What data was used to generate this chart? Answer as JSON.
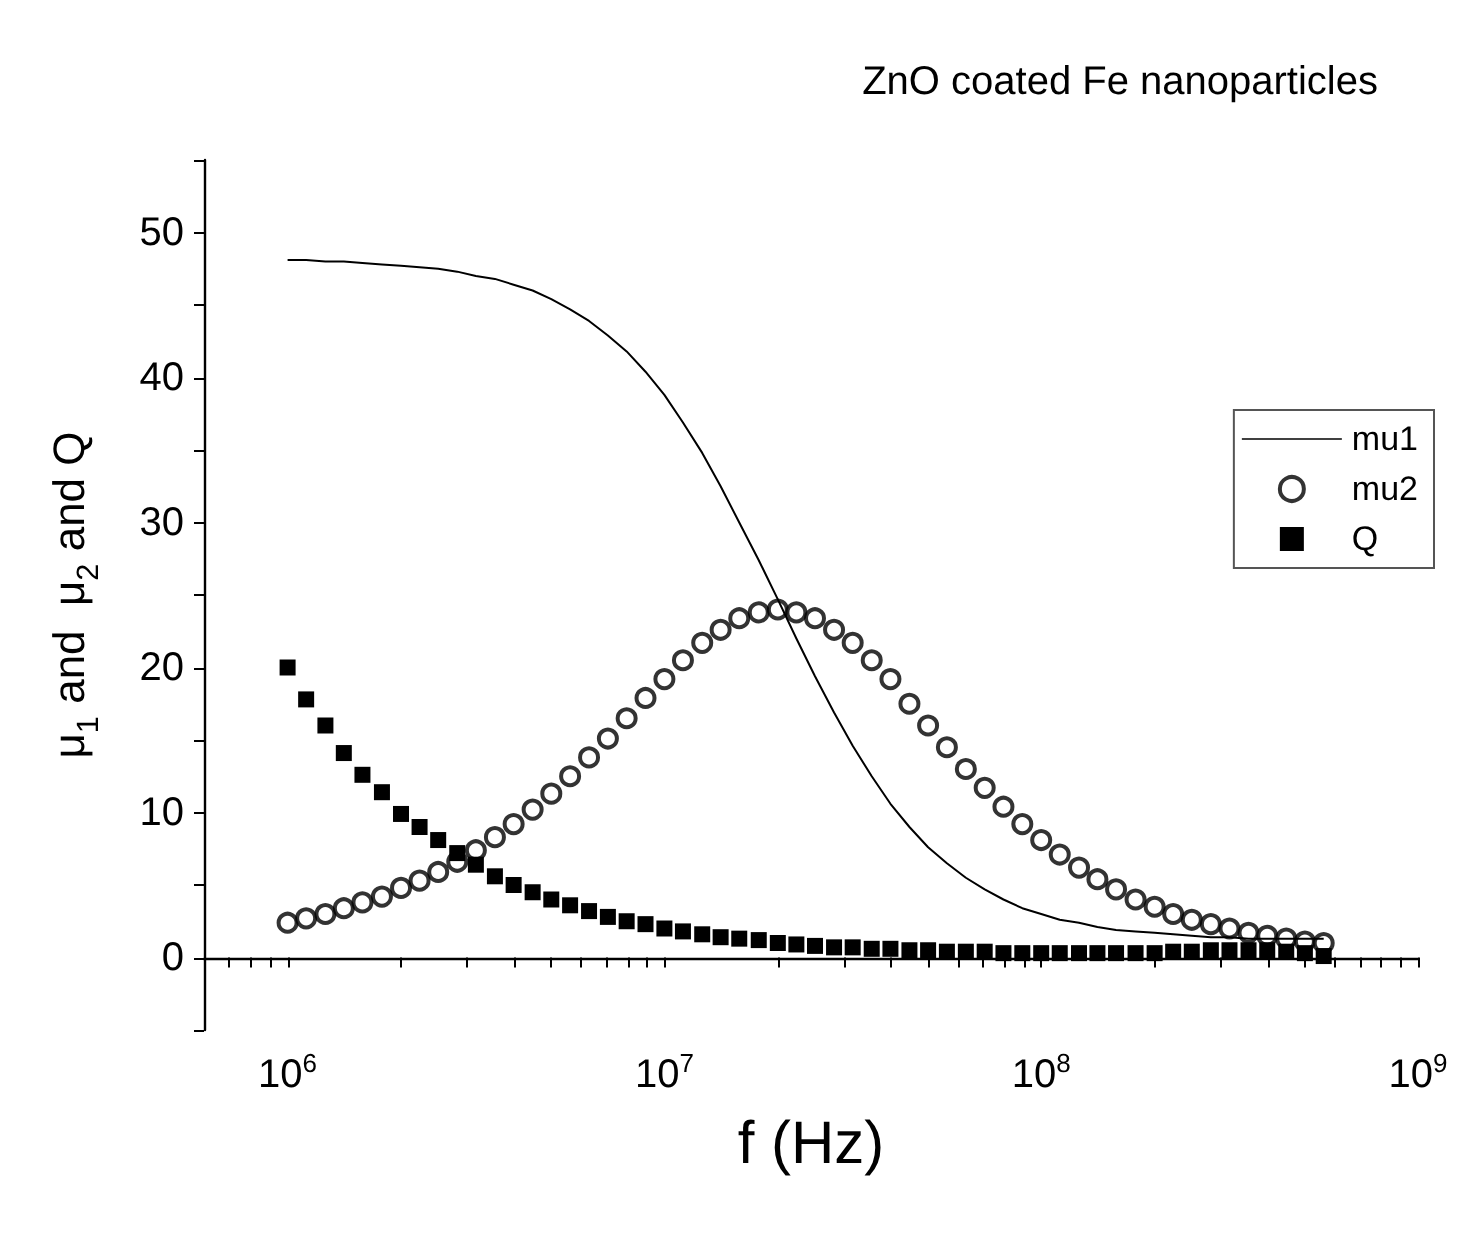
{
  "chart_data": {
    "type": "line",
    "title": "ZnO coated Fe nanoparticles",
    "xlabel": "f (Hz)",
    "ylabel": "μ$_{1}$ and  μ$_{2}$ and Q",
    "log": "x",
    "legend": "right",
    "grid": false,
    "x": [
      1000000.0,
      1120000.0,
      1260000.0,
      1410000.0,
      1580000.0,
      1780000.0,
      2000000.0,
      2240000.0,
      2510000.0,
      2820000.0,
      3160000.0,
      3550000.0,
      3980000.0,
      4470000.0,
      5010000.0,
      5620000.0,
      6310000.0,
      7080000.0,
      7940000.0,
      8910000.0,
      10000000.0,
      11200000.0,
      12600000.0,
      14100000.0,
      15800000.0,
      17800000.0,
      20000000.0,
      22400000.0,
      25100000.0,
      28200000.0,
      31600000.0,
      35500000.0,
      39800000.0,
      44700000.0,
      50100000.0,
      56200000.0,
      63100000.0,
      70800000.0,
      79400000.0,
      89100000.0,
      100000000.0,
      112000000.0,
      126000000.0,
      141000000.0,
      158000000.0,
      178000000.0,
      200000000.0,
      224000000.0,
      251000000.0,
      282000000.0,
      316000000.0,
      355000000.0,
      398000000.0,
      447000000.0,
      501000000.0,
      562000000.0
    ],
    "series": [
      {
        "name": "mu1",
        "type": "line",
        "marker": "none",
        "line_style": "solid",
        "color": "#000000",
        "values": [
          48.1,
          48.1,
          48.0,
          48.0,
          47.9,
          47.8,
          47.7,
          47.6,
          47.5,
          47.3,
          47.0,
          46.8,
          46.4,
          46.0,
          45.4,
          44.7,
          43.9,
          42.9,
          41.8,
          40.4,
          38.8,
          36.9,
          34.8,
          32.5,
          30.0,
          27.4,
          24.7,
          22.0,
          19.4,
          16.9,
          14.6,
          12.5,
          10.6,
          9.0,
          7.6,
          6.5,
          5.5,
          4.7,
          4.0,
          3.4,
          3.0,
          2.6,
          2.4,
          2.1,
          1.9,
          1.8,
          1.7,
          1.6,
          1.5,
          1.4,
          1.4,
          1.3,
          1.3,
          1.3,
          1.3,
          1.3
        ]
      },
      {
        "name": "mu2",
        "type": "scatter",
        "marker": "circle",
        "color": "#000000",
        "values": [
          2.4,
          2.7,
          3.0,
          3.4,
          3.8,
          4.2,
          4.8,
          5.3,
          5.9,
          6.6,
          7.4,
          8.3,
          9.2,
          10.2,
          11.3,
          12.5,
          13.8,
          15.1,
          16.5,
          17.9,
          19.2,
          20.5,
          21.7,
          22.6,
          23.4,
          23.8,
          24.0,
          23.8,
          23.4,
          22.6,
          21.7,
          20.5,
          19.2,
          17.5,
          16.0,
          14.5,
          13.0,
          11.7,
          10.4,
          9.2,
          8.1,
          7.1,
          6.2,
          5.4,
          4.7,
          4.0,
          3.5,
          3.0,
          2.6,
          2.3,
          2.0,
          1.7,
          1.5,
          1.3,
          1.1,
          1.0
        ]
      },
      {
        "name": "Q",
        "type": "scatter",
        "marker": "square",
        "color": "#000000",
        "values": [
          20.0,
          17.8,
          16.0,
          14.1,
          12.6,
          11.4,
          9.9,
          9.0,
          8.1,
          7.2,
          6.4,
          5.6,
          5.0,
          4.5,
          4.0,
          3.6,
          3.2,
          2.8,
          2.5,
          2.3,
          2.0,
          1.8,
          1.6,
          1.4,
          1.3,
          1.2,
          1.0,
          0.9,
          0.8,
          0.7,
          0.7,
          0.6,
          0.6,
          0.5,
          0.5,
          0.4,
          0.4,
          0.4,
          0.3,
          0.3,
          0.3,
          0.3,
          0.3,
          0.3,
          0.3,
          0.3,
          0.3,
          0.4,
          0.4,
          0.5,
          0.5,
          0.5,
          0.5,
          0.4,
          0.3,
          0.1
        ]
      }
    ],
    "xlim": [
      600000.0,
      1000000000.0
    ],
    "xticks": [
      {
        "value": 600000.0,
        "label": null
      },
      {
        "value": 700000.0,
        "label": null
      },
      {
        "value": 800000.0,
        "label": null
      },
      {
        "value": 900000.0,
        "label": null
      },
      {
        "value": 1000000.0,
        "label": "10$^{6}$"
      },
      {
        "value": 2000000.0,
        "label": null
      },
      {
        "value": 3000000.0,
        "label": null
      },
      {
        "value": 4000000.0,
        "label": null
      },
      {
        "value": 5000000.0,
        "label": null
      },
      {
        "value": 6000000.0,
        "label": null
      },
      {
        "value": 7000000.0,
        "label": null
      },
      {
        "value": 8000000.0,
        "label": null
      },
      {
        "value": 9000000.0,
        "label": null
      },
      {
        "value": 10000000.0,
        "label": "10$^{7}$"
      },
      {
        "value": 20000000.0,
        "label": null
      },
      {
        "value": 30000000.0,
        "label": null
      },
      {
        "value": 40000000.0,
        "label": null
      },
      {
        "value": 50000000.0,
        "label": null
      },
      {
        "value": 60000000.0,
        "label": null
      },
      {
        "value": 70000000.0,
        "label": null
      },
      {
        "value": 80000000.0,
        "label": null
      },
      {
        "value": 90000000.0,
        "label": null
      },
      {
        "value": 100000000.0,
        "label": "10$^{8}$"
      },
      {
        "value": 200000000.0,
        "label": null
      },
      {
        "value": 300000000.0,
        "label": null
      },
      {
        "value": 400000000.0,
        "label": null
      },
      {
        "value": 500000000.0,
        "label": null
      },
      {
        "value": 600000000.0,
        "label": null
      },
      {
        "value": 700000000.0,
        "label": null
      },
      {
        "value": 800000000.0,
        "label": null
      },
      {
        "value": 900000000.0,
        "label": null
      },
      {
        "value": 1000000000.0,
        "label": "10$^{9}$"
      }
    ],
    "ylim": [
      -5,
      55
    ],
    "yticks": [
      {
        "value": -5,
        "label": null
      },
      0,
      {
        "value": 5,
        "label": null
      },
      10,
      {
        "value": 15,
        "label": null
      },
      20,
      {
        "value": 25,
        "label": null
      },
      30,
      {
        "value": 35,
        "label": null
      },
      40,
      {
        "value": 45,
        "label": null
      },
      50,
      {
        "value": 55,
        "label": null
      }
    ]
  }
}
